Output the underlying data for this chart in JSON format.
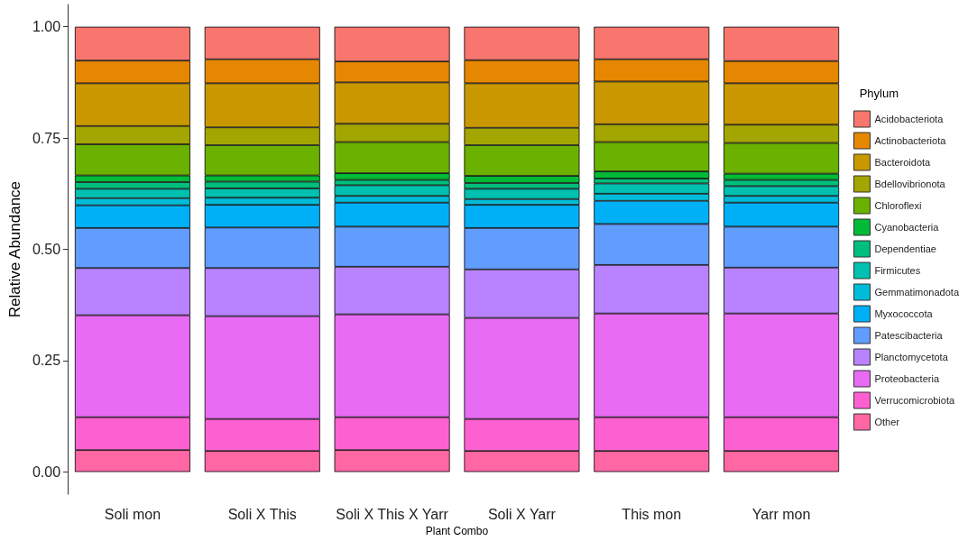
{
  "chart_data": {
    "type": "bar",
    "stacked": true,
    "xlabel": "Plant Combo",
    "ylabel": "Relative Abundance",
    "legend_title": "Phylum",
    "legend": "right",
    "grid": false,
    "categories": [
      "Soli mon",
      "Soli X This",
      "Soli X This X Yarr",
      "Soli X Yarr",
      "This mon",
      "Yarr mon"
    ],
    "ylim": [
      -0.05,
      1.05
    ],
    "yticks": [
      {
        "value": 0,
        "label": "0.00"
      },
      {
        "value": 0.25,
        "label": "0.25"
      },
      {
        "value": 0.5,
        "label": "0.50"
      },
      {
        "value": 0.75,
        "label": "0.75"
      },
      {
        "value": 1,
        "label": "1.00"
      }
    ],
    "series": [
      {
        "name": "Other",
        "color": "#ff67a4",
        "values": [
          0.049,
          0.047,
          0.049,
          0.047,
          0.047,
          0.047
        ]
      },
      {
        "name": "Verrucomicrobiota",
        "color": "#fd61d1",
        "values": [
          0.074,
          0.072,
          0.074,
          0.072,
          0.076,
          0.076
        ]
      },
      {
        "name": "Proteobacteria",
        "color": "#e76bf3",
        "values": [
          0.229,
          0.231,
          0.231,
          0.227,
          0.233,
          0.233
        ]
      },
      {
        "name": "Planctomycetota",
        "color": "#b983ff",
        "values": [
          0.106,
          0.108,
          0.107,
          0.109,
          0.109,
          0.103
        ]
      },
      {
        "name": "Patescibacteria",
        "color": "#619cff",
        "values": [
          0.09,
          0.091,
          0.09,
          0.093,
          0.092,
          0.092
        ]
      },
      {
        "name": "Myxococcota",
        "color": "#00b0f6",
        "values": [
          0.051,
          0.051,
          0.054,
          0.052,
          0.052,
          0.054
        ]
      },
      {
        "name": "Gemmatimonadota",
        "color": "#00bcd8",
        "values": [
          0.016,
          0.016,
          0.015,
          0.013,
          0.016,
          0.015
        ]
      },
      {
        "name": "Firmicutes",
        "color": "#00c0af",
        "values": [
          0.021,
          0.021,
          0.024,
          0.023,
          0.023,
          0.022
        ]
      },
      {
        "name": "Dependentiae",
        "color": "#00bf7d",
        "values": [
          0.015,
          0.015,
          0.012,
          0.013,
          0.011,
          0.014
        ]
      },
      {
        "name": "Cyanobacteria",
        "color": "#00ba38",
        "values": [
          0.015,
          0.014,
          0.015,
          0.016,
          0.016,
          0.014
        ]
      },
      {
        "name": "Chloroflexi",
        "color": "#6bb100",
        "values": [
          0.07,
          0.068,
          0.07,
          0.069,
          0.066,
          0.069
        ]
      },
      {
        "name": "Bdellovibrionota",
        "color": "#a3a500",
        "values": [
          0.041,
          0.04,
          0.041,
          0.039,
          0.04,
          0.041
        ]
      },
      {
        "name": "Bacteroidota",
        "color": "#c99800",
        "values": [
          0.096,
          0.099,
          0.093,
          0.1,
          0.096,
          0.093
        ]
      },
      {
        "name": "Actinobacteriota",
        "color": "#e58700",
        "values": [
          0.051,
          0.054,
          0.047,
          0.052,
          0.05,
          0.05
        ]
      },
      {
        "name": "Acidobacteriota",
        "color": "#f8766d",
        "values": [
          0.076,
          0.073,
          0.078,
          0.075,
          0.073,
          0.077
        ]
      }
    ]
  }
}
